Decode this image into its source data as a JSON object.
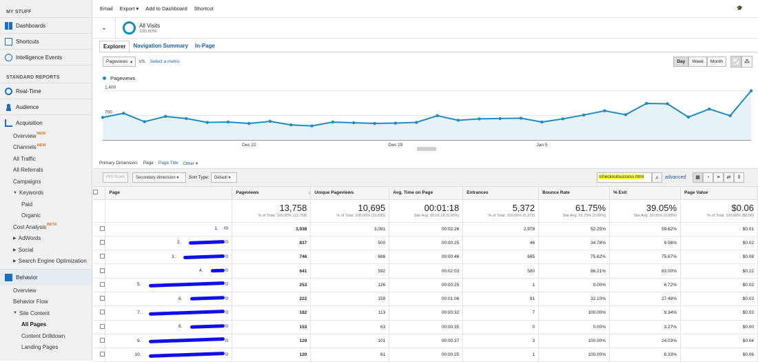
{
  "sidebar": {
    "my_stuff": "MY STUFF",
    "dashboards": "Dashboards",
    "shortcuts": "Shortcuts",
    "intelligence": "Intelligence Events",
    "standard_reports": "STANDARD REPORTS",
    "realtime": "Real-Time",
    "audience": "Audience",
    "acquisition": "Acquisition",
    "acq_items": [
      {
        "label": "Overview",
        "badge": "NEW"
      },
      {
        "label": "Channels",
        "badge": "NEW"
      },
      {
        "label": "All Traffic",
        "badge": ""
      },
      {
        "label": "All Referrals",
        "badge": ""
      },
      {
        "label": "Campaigns",
        "badge": ""
      }
    ],
    "keywords": "Keywords",
    "keywords_sub": [
      "Paid",
      "Organic"
    ],
    "cost_analysis": "Cost Analysis",
    "cost_badge": "BETA",
    "adwords": "AdWords",
    "social": "Social",
    "seo": "Search Engine Optimization",
    "behavior": "Behavior",
    "beh_overview": "Overview",
    "beh_flow": "Behavior Flow",
    "site_content": "Site Content",
    "all_pages": "All Pages",
    "content_drilldown": "Content Drilldown",
    "landing_pages": "Landing Pages"
  },
  "toolbar": {
    "email": "Email",
    "export": "Export ▾",
    "add_dashboard": "Add to Dashboard",
    "shortcut": "Shortcut"
  },
  "segment": {
    "name": "All Visits",
    "pct": "100.00%"
  },
  "tabs": [
    "Explorer",
    "Navigation Summary",
    "In-Page"
  ],
  "metric": {
    "select": "Pageviews",
    "vs": "VS.",
    "select_metric": "Select a metric"
  },
  "granularity": [
    "Day",
    "Week",
    "Month"
  ],
  "chart_data": {
    "type": "line",
    "series": [
      {
        "name": "Pageviews",
        "values": [
          640,
          760,
          520,
          670,
          610,
          500,
          510,
          470,
          530,
          430,
          400,
          510,
          490,
          470,
          480,
          500,
          690,
          560,
          600,
          610,
          620,
          510,
          600,
          710,
          830,
          720,
          1040,
          1030,
          650,
          880,
          690,
          1400
        ]
      }
    ],
    "y_ticks": [
      "1,400",
      "700"
    ],
    "x_labels": [
      "Dec 22",
      "Dec 29",
      "Jan 5"
    ],
    "ylim": [
      0,
      1550
    ],
    "color": "#1c8cc1"
  },
  "primary_dimension": {
    "label": "Primary Dimension:",
    "page": "Page",
    "page_title": "Page Title",
    "other": "Other ▾"
  },
  "table_controls": {
    "plot_rows": "Plot Rows",
    "secondary": "Secondary dimension ▾",
    "sort_label": "Sort Type:",
    "sort_value": "Default ▾",
    "search": "/checkoutsuccess.html",
    "advanced": "advanced"
  },
  "columns": [
    "Page",
    "Pageviews",
    "Unique Pageviews",
    "Avg. Time on Page",
    "Entrances",
    "Bounce Rate",
    "% Exit",
    "Page Value"
  ],
  "totals": [
    {
      "big": "13,758",
      "sub": "% of Total: 100.00% (13,758)"
    },
    {
      "big": "10,695",
      "sub": "% of Total: 100.00% (10,695)"
    },
    {
      "big": "00:01:18",
      "sub": "Site Avg: 00:01:18 (0.00%)"
    },
    {
      "big": "5,372",
      "sub": "% of Total: 100.00% (5,372)"
    },
    {
      "big": "61.75%",
      "sub": "Site Avg: 61.75% (0.00%)"
    },
    {
      "big": "39.05%",
      "sub": "Site Avg: 39.05% (0.00%)"
    },
    {
      "big": "$0.06",
      "sub": "% of Total: 100.00% ($0.06)"
    }
  ],
  "rows": [
    {
      "num": "1.",
      "page": "/",
      "pv": "3,938",
      "upv": "3,081",
      "time": "00:02:26",
      "ent": "2,978",
      "br": "52.25%",
      "exit": "59.62%",
      "val": "$0.01"
    },
    {
      "num": "2.",
      "page": "",
      "pv": "837",
      "upv": "500",
      "time": "00:00:25",
      "ent": "46",
      "br": "34.78%",
      "exit": "9.56%",
      "val": "$0.02"
    },
    {
      "num": "3.",
      "page": "",
      "pv": "746",
      "upv": "686",
      "time": "00:00:46",
      "ent": "685",
      "br": "75.62%",
      "exit": "75.87%",
      "val": "$0.08"
    },
    {
      "num": "4.",
      "page": "",
      "pv": "641",
      "upv": "592",
      "time": "00:02:03",
      "ent": "580",
      "br": "86.21%",
      "exit": "83.00%",
      "val": "$0.22"
    },
    {
      "num": "5.",
      "page": "",
      "pv": "253",
      "upv": "126",
      "time": "00:00:25",
      "ent": "1",
      "br": "0.00%",
      "exit": "6.72%",
      "val": "$0.02"
    },
    {
      "num": "6.",
      "page": "",
      "pv": "222",
      "upv": "159",
      "time": "00:01:06",
      "ent": "81",
      "br": "32.10%",
      "exit": "27.48%",
      "val": "$0.03"
    },
    {
      "num": "7.",
      "page": "",
      "pv": "182",
      "upv": "113",
      "time": "00:00:32",
      "ent": "7",
      "br": "100.00%",
      "exit": "9.34%",
      "val": "$0.03"
    },
    {
      "num": "8.",
      "page": "",
      "pv": "153",
      "upv": "63",
      "time": "00:00:35",
      "ent": "0",
      "br": "0.00%",
      "exit": "3.27%",
      "val": "$0.00"
    },
    {
      "num": "9.",
      "page": "",
      "pv": "129",
      "upv": "101",
      "time": "00:00:37",
      "ent": "3",
      "br": "100.00%",
      "exit": "24.03%",
      "val": "$0.04"
    },
    {
      "num": "10.",
      "page": "",
      "pv": "120",
      "upv": "61",
      "time": "00:00:25",
      "ent": "1",
      "br": "100.00%",
      "exit": "8.33%",
      "val": "$0.06"
    }
  ]
}
